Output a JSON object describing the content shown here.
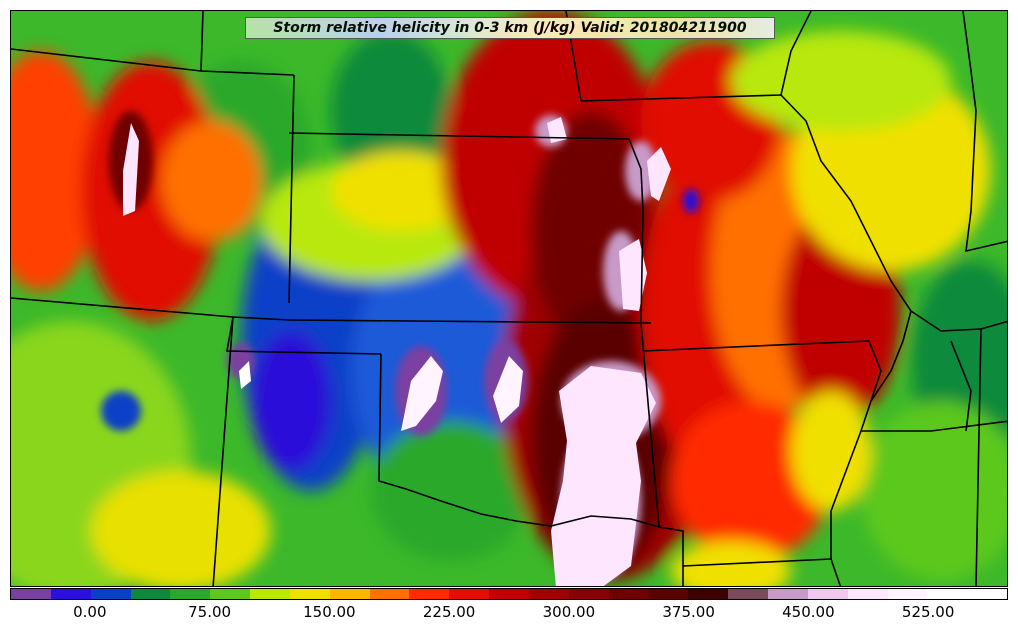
{
  "title": "Storm relative helicity in 0-3 km (J/kg) Valid: 201804211900",
  "colorbar": {
    "min": -50,
    "max": 575,
    "step": 25,
    "colors": [
      "#7b3fa0",
      "#2a10d8",
      "#0a3fc8",
      "#0a8a3a",
      "#2aa82a",
      "#5cc81e",
      "#b8e80a",
      "#f0e000",
      "#ffb400",
      "#ff7000",
      "#ff2a00",
      "#e01000",
      "#c00000",
      "#a00000",
      "#880000",
      "#700000",
      "#5a0000",
      "#3c0000",
      "#7a4a5a",
      "#c89ac8",
      "#f0c8f0",
      "#ffe6ff",
      "#fff4ff",
      "#ffffff",
      "#ffffff"
    ],
    "tick_values": [
      0,
      75,
      150,
      225,
      300,
      375,
      450,
      525
    ],
    "tick_labels": [
      "0.00",
      "75.00",
      "150.00",
      "225.00",
      "300.00",
      "375.00",
      "450.00",
      "525.00"
    ]
  }
}
